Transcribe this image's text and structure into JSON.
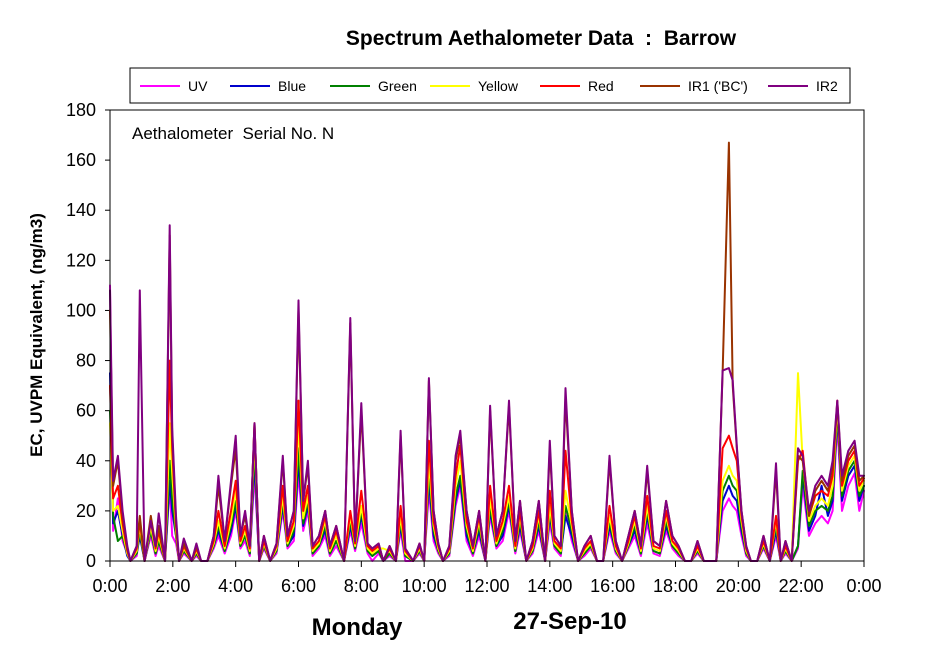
{
  "chart_data": {
    "type": "line",
    "title": "Spectrum Aethalometer Data  :  Barrow",
    "ylabel": "EC, UVPM Equivalent, (ng/m3)",
    "xlabel": "",
    "ylim": [
      0,
      180
    ],
    "yticks": [
      0,
      20,
      40,
      60,
      80,
      100,
      120,
      140,
      160,
      180
    ],
    "xlim": [
      0,
      24
    ],
    "x_tick_labels": [
      "0:00",
      "2:00",
      "4:00",
      "6:00",
      "8:00",
      "10:00",
      "12:00",
      "14:00",
      "16:00",
      "18:00",
      "20:00",
      "22:00",
      "0:00"
    ],
    "grid": false,
    "legend_position": "top",
    "annotation": "Aethalometer  Serial No. N",
    "day_label": "Monday",
    "date_label": "27-Sep-10",
    "x_hours": [
      0,
      0.1,
      0.25,
      0.4,
      0.55,
      0.65,
      0.85,
      0.95,
      1.1,
      1.3,
      1.45,
      1.55,
      1.75,
      1.9,
      1.98,
      2.1,
      2.2,
      2.35,
      2.6,
      2.75,
      2.9,
      3.1,
      3.3,
      3.45,
      3.65,
      3.85,
      4.0,
      4.15,
      4.3,
      4.45,
      4.6,
      4.75,
      4.9,
      5.1,
      5.3,
      5.5,
      5.65,
      5.85,
      6.0,
      6.15,
      6.3,
      6.45,
      6.65,
      6.85,
      7.0,
      7.2,
      7.45,
      7.65,
      7.8,
      8.0,
      8.2,
      8.35,
      8.55,
      8.7,
      8.9,
      9.1,
      9.25,
      9.4,
      9.65,
      9.85,
      10.0,
      10.15,
      10.3,
      10.45,
      10.6,
      10.8,
      11.0,
      11.15,
      11.35,
      11.55,
      11.75,
      11.95,
      12.1,
      12.3,
      12.5,
      12.7,
      12.9,
      13.05,
      13.25,
      13.45,
      13.65,
      13.85,
      14.0,
      14.15,
      14.35,
      14.5,
      14.7,
      14.9,
      15.1,
      15.3,
      15.5,
      15.7,
      15.9,
      16.1,
      16.3,
      16.5,
      16.7,
      16.9,
      17.1,
      17.3,
      17.5,
      17.7,
      17.9,
      18.1,
      18.3,
      18.5,
      18.7,
      18.9,
      19.1,
      19.3,
      19.5,
      19.7,
      19.82,
      19.95,
      20.1,
      20.25,
      20.4,
      20.6,
      20.8,
      21.0,
      21.2,
      21.35,
      21.5,
      21.7,
      21.9,
      22.05,
      22.25,
      22.45,
      22.65,
      22.85,
      23.0,
      23.15,
      23.3,
      23.5,
      23.7,
      23.85,
      24.0
    ],
    "series": [
      {
        "name": "UV",
        "color": "#ff00ff",
        "values": [
          110,
          12,
          25,
          8,
          3,
          0,
          2,
          12,
          0,
          10,
          2,
          6,
          0,
          30,
          10,
          7,
          0,
          3,
          0,
          2,
          0,
          0,
          5,
          10,
          3,
          10,
          20,
          5,
          8,
          2,
          35,
          0,
          5,
          0,
          3,
          20,
          5,
          8,
          35,
          12,
          20,
          2,
          5,
          10,
          2,
          6,
          0,
          12,
          4,
          15,
          3,
          0,
          3,
          0,
          2,
          0,
          12,
          0,
          0,
          3,
          0,
          28,
          8,
          3,
          0,
          2,
          22,
          30,
          8,
          2,
          10,
          0,
          18,
          5,
          8,
          20,
          3,
          12,
          0,
          3,
          12,
          0,
          15,
          5,
          2,
          20,
          8,
          0,
          2,
          5,
          0,
          0,
          12,
          3,
          0,
          5,
          10,
          2,
          15,
          3,
          2,
          12,
          5,
          2,
          0,
          0,
          3,
          0,
          0,
          0,
          20,
          25,
          22,
          20,
          10,
          2,
          0,
          0,
          5,
          0,
          10,
          0,
          3,
          0,
          5,
          30,
          10,
          15,
          18,
          15,
          20,
          55,
          20,
          30,
          35,
          20,
          28
        ]
      },
      {
        "name": "Blue",
        "color": "#0000cc",
        "values": [
          75,
          15,
          20,
          10,
          2,
          0,
          3,
          10,
          0,
          12,
          3,
          8,
          0,
          32,
          20,
          10,
          0,
          4,
          0,
          3,
          0,
          0,
          6,
          12,
          4,
          12,
          22,
          6,
          10,
          3,
          40,
          0,
          6,
          0,
          4,
          22,
          6,
          10,
          40,
          14,
          22,
          3,
          6,
          12,
          3,
          8,
          0,
          14,
          5,
          18,
          4,
          2,
          4,
          0,
          3,
          0,
          14,
          2,
          0,
          4,
          0,
          32,
          10,
          4,
          0,
          3,
          24,
          32,
          10,
          3,
          12,
          0,
          20,
          6,
          10,
          22,
          4,
          14,
          0,
          4,
          14,
          0,
          18,
          6,
          3,
          18,
          10,
          0,
          3,
          6,
          0,
          0,
          14,
          4,
          0,
          6,
          12,
          3,
          18,
          4,
          3,
          14,
          6,
          3,
          0,
          0,
          4,
          0,
          0,
          0,
          24,
          30,
          26,
          24,
          12,
          3,
          0,
          0,
          6,
          0,
          12,
          0,
          4,
          0,
          6,
          34,
          12,
          18,
          30,
          18,
          24,
          58,
          24,
          34,
          38,
          24,
          30
        ]
      },
      {
        "name": "Green",
        "color": "#008000",
        "values": [
          60,
          18,
          8,
          10,
          3,
          0,
          3,
          12,
          0,
          12,
          3,
          8,
          0,
          40,
          25,
          10,
          0,
          4,
          0,
          3,
          0,
          0,
          6,
          14,
          4,
          14,
          24,
          6,
          10,
          3,
          45,
          0,
          6,
          0,
          4,
          24,
          6,
          12,
          45,
          15,
          24,
          3,
          6,
          14,
          3,
          8,
          0,
          16,
          5,
          20,
          4,
          2,
          4,
          0,
          3,
          0,
          16,
          2,
          0,
          4,
          0,
          36,
          12,
          4,
          0,
          3,
          26,
          34,
          12,
          3,
          14,
          0,
          22,
          6,
          12,
          24,
          4,
          16,
          0,
          4,
          16,
          0,
          20,
          6,
          3,
          22,
          12,
          0,
          3,
          6,
          0,
          0,
          16,
          4,
          0,
          6,
          14,
          3,
          20,
          4,
          3,
          16,
          6,
          3,
          0,
          0,
          4,
          0,
          0,
          0,
          28,
          34,
          30,
          28,
          14,
          3,
          0,
          0,
          6,
          0,
          14,
          0,
          4,
          0,
          6,
          36,
          14,
          20,
          22,
          20,
          26,
          60,
          26,
          36,
          40,
          26,
          30
        ]
      },
      {
        "name": "Yellow",
        "color": "#ffff00",
        "values": [
          55,
          20,
          22,
          12,
          3,
          0,
          4,
          14,
          0,
          14,
          4,
          10,
          0,
          55,
          35,
          12,
          0,
          5,
          0,
          4,
          0,
          0,
          7,
          16,
          5,
          16,
          28,
          7,
          12,
          4,
          50,
          0,
          7,
          0,
          5,
          26,
          7,
          14,
          55,
          17,
          26,
          4,
          7,
          16,
          4,
          10,
          0,
          18,
          6,
          22,
          5,
          3,
          5,
          5,
          4,
          0,
          18,
          3,
          0,
          5,
          0,
          40,
          14,
          5,
          0,
          4,
          30,
          40,
          14,
          4,
          16,
          0,
          25,
          7,
          14,
          26,
          5,
          18,
          0,
          5,
          18,
          0,
          22,
          7,
          4,
          28,
          14,
          0,
          4,
          7,
          0,
          0,
          18,
          5,
          0,
          7,
          16,
          4,
          22,
          5,
          4,
          18,
          7,
          4,
          0,
          0,
          5,
          0,
          0,
          0,
          32,
          38,
          34,
          32,
          16,
          4,
          0,
          0,
          7,
          0,
          16,
          0,
          5,
          0,
          75,
          40,
          16,
          22,
          25,
          22,
          30,
          62,
          28,
          38,
          42,
          28,
          32
        ]
      },
      {
        "name": "Red",
        "color": "#ff0000",
        "values": [
          70,
          25,
          30,
          15,
          4,
          0,
          5,
          16,
          0,
          16,
          5,
          12,
          0,
          80,
          45,
          14,
          0,
          6,
          0,
          5,
          0,
          0,
          8,
          20,
          6,
          20,
          32,
          8,
          14,
          5,
          55,
          0,
          8,
          0,
          6,
          30,
          8,
          16,
          64,
          20,
          30,
          5,
          8,
          18,
          5,
          12,
          0,
          20,
          7,
          28,
          6,
          4,
          6,
          0,
          5,
          0,
          22,
          4,
          0,
          6,
          0,
          48,
          16,
          6,
          0,
          5,
          34,
          46,
          16,
          5,
          18,
          0,
          30,
          8,
          16,
          30,
          6,
          20,
          0,
          6,
          20,
          0,
          28,
          8,
          5,
          44,
          16,
          0,
          5,
          8,
          0,
          0,
          22,
          6,
          0,
          8,
          18,
          5,
          26,
          6,
          5,
          20,
          8,
          5,
          0,
          0,
          6,
          0,
          0,
          0,
          45,
          50,
          45,
          40,
          18,
          5,
          0,
          0,
          8,
          0,
          18,
          0,
          6,
          0,
          40,
          44,
          18,
          26,
          28,
          26,
          34,
          64,
          30,
          40,
          44,
          30,
          33
        ]
      },
      {
        "name": "IR1 ('BC')",
        "color": "#993300",
        "values": [
          100,
          30,
          40,
          18,
          5,
          0,
          6,
          18,
          0,
          18,
          6,
          14,
          0,
          130,
          50,
          16,
          0,
          7,
          0,
          6,
          0,
          0,
          10,
          30,
          8,
          30,
          45,
          10,
          18,
          6,
          55,
          0,
          10,
          0,
          7,
          40,
          10,
          20,
          100,
          24,
          38,
          6,
          10,
          20,
          6,
          14,
          0,
          95,
          8,
          60,
          7,
          5,
          7,
          0,
          6,
          0,
          50,
          5,
          0,
          7,
          0,
          72,
          20,
          7,
          0,
          6,
          40,
          50,
          20,
          6,
          20,
          0,
          60,
          10,
          20,
          62,
          8,
          24,
          0,
          8,
          24,
          0,
          45,
          10,
          6,
          65,
          20,
          0,
          6,
          10,
          0,
          0,
          40,
          8,
          0,
          10,
          20,
          6,
          36,
          8,
          6,
          24,
          10,
          6,
          0,
          0,
          8,
          0,
          0,
          0,
          75,
          167,
          70,
          45,
          20,
          6,
          0,
          0,
          10,
          0,
          36,
          0,
          8,
          0,
          42,
          40,
          18,
          28,
          32,
          28,
          38,
          63,
          32,
          42,
          46,
          32,
          34
        ]
      },
      {
        "name": "IR2",
        "color": "#800080",
        "values": [
          108,
          32,
          42,
          20,
          6,
          0,
          6,
          108,
          0,
          16,
          6,
          19,
          0,
          134,
          53,
          18,
          0,
          9,
          0,
          7,
          0,
          0,
          10,
          34,
          8,
          32,
          50,
          10,
          20,
          6,
          55,
          0,
          10,
          0,
          7,
          42,
          10,
          20,
          104,
          24,
          40,
          6,
          10,
          20,
          6,
          14,
          0,
          97,
          8,
          63,
          7,
          5,
          7,
          0,
          6,
          0,
          52,
          5,
          0,
          7,
          0,
          73,
          20,
          7,
          0,
          6,
          42,
          52,
          20,
          6,
          20,
          0,
          62,
          10,
          20,
          64,
          8,
          24,
          0,
          8,
          24,
          0,
          48,
          10,
          6,
          69,
          20,
          0,
          6,
          10,
          0,
          0,
          42,
          8,
          0,
          10,
          20,
          6,
          38,
          8,
          6,
          24,
          10,
          6,
          0,
          0,
          8,
          0,
          0,
          0,
          76,
          77,
          72,
          46,
          20,
          6,
          0,
          0,
          10,
          0,
          39,
          0,
          8,
          0,
          45,
          42,
          20,
          30,
          34,
          30,
          40,
          64,
          34,
          44,
          48,
          34,
          34
        ]
      }
    ]
  }
}
